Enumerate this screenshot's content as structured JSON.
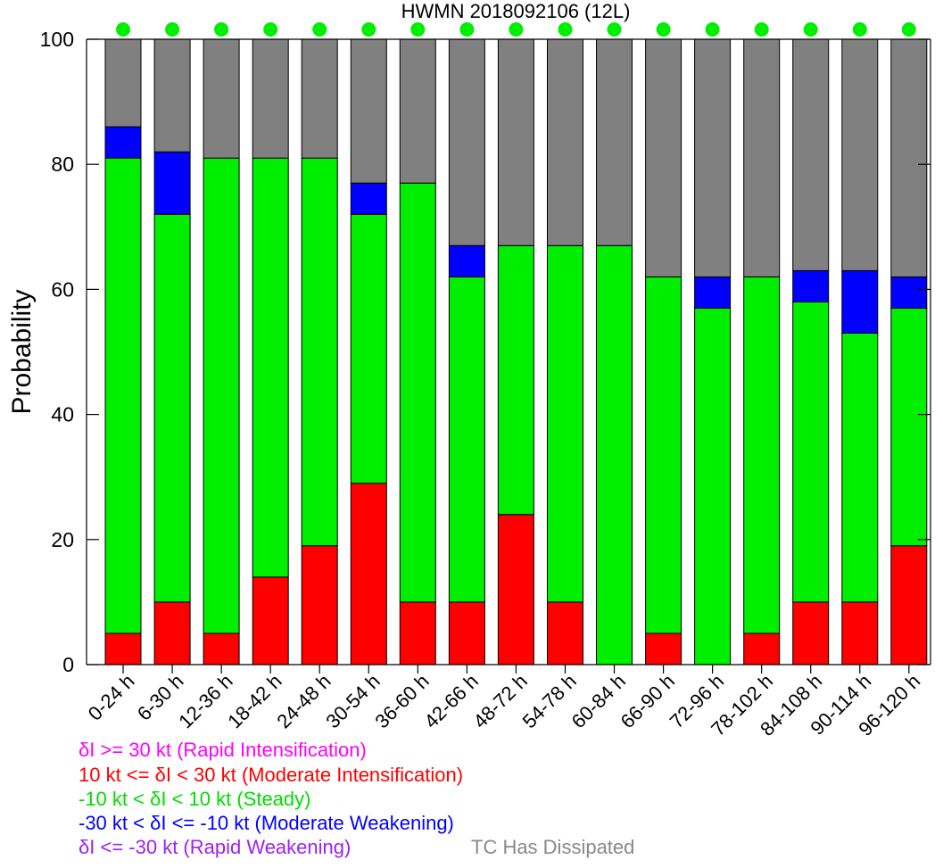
{
  "chart_data": {
    "type": "bar",
    "stacked": true,
    "title": "HWMN 2018092106  (12L)",
    "ylabel": "Probability",
    "xlabel": "",
    "ylim": [
      0,
      100
    ],
    "yticks": [
      "0",
      "20",
      "40",
      "60",
      "80",
      "100"
    ],
    "categories": [
      "0-24 h",
      "6-30 h",
      "12-36 h",
      "18-42 h",
      "24-48 h",
      "30-54 h",
      "36-60 h",
      "42-66 h",
      "48-72 h",
      "54-78 h",
      "60-84 h",
      "66-90 h",
      "72-96 h",
      "78-102 h",
      "84-108 h",
      "90-114 h",
      "96-120 h"
    ],
    "series": [
      {
        "name": "10 kt <= δI < 30 kt (Moderate Intensification)",
        "color": "#ff0000",
        "values": [
          5,
          10,
          5,
          14,
          19,
          29,
          10,
          10,
          24,
          10,
          0,
          5,
          0,
          5,
          10,
          10,
          19
        ]
      },
      {
        "name": "-10 kt < δI < 10 kt (Steady)",
        "color": "#00ee00",
        "values": [
          76,
          62,
          76,
          67,
          62,
          43,
          67,
          52,
          43,
          57,
          67,
          57,
          57,
          57,
          48,
          43,
          38
        ]
      },
      {
        "name": "-30 kt < δI <= -10 kt (Moderate Weakening)",
        "color": "#0000ff",
        "values": [
          5,
          10,
          0,
          0,
          0,
          5,
          0,
          5,
          0,
          0,
          0,
          0,
          5,
          0,
          5,
          10,
          5
        ]
      },
      {
        "name": "TC Has Dissipated",
        "color": "#808080",
        "values": [
          14,
          18,
          19,
          19,
          19,
          23,
          23,
          33,
          33,
          33,
          33,
          38,
          38,
          38,
          37,
          37,
          38
        ]
      }
    ],
    "marker_color": "#00ee00",
    "legend": [
      {
        "text": "δI >= 30 kt (Rapid Intensification)",
        "color": "#ff00ff"
      },
      {
        "text": "10 kt <= δI < 30 kt (Moderate Intensification)",
        "color": "#ff0000"
      },
      {
        "text": "-10 kt < δI < 10 kt (Steady)",
        "color": "#00dd00"
      },
      {
        "text": "-30 kt < δI <= -10 kt (Moderate Weakening)",
        "color": "#0000ff"
      },
      {
        "text": "δI <= -30 kt (Rapid Weakening)",
        "color": "#a020f0"
      }
    ],
    "legend_extra": {
      "text": "TC Has Dissipated",
      "color": "#888888"
    }
  }
}
